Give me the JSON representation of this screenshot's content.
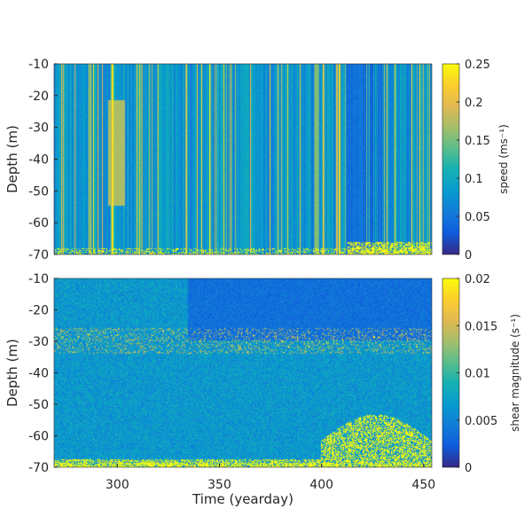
{
  "chart_data": [
    {
      "type": "heatmap",
      "title": "",
      "xlabel": "",
      "ylabel": "Depth (m)",
      "xlim": [
        269,
        454
      ],
      "ylim": [
        -70,
        -10
      ],
      "xticks": [],
      "yticks": [
        -10,
        -20,
        -30,
        -40,
        -50,
        -60,
        -70
      ],
      "ytick_labels": [
        "-10",
        "-20",
        "-30",
        "-40",
        "-50",
        "-60",
        "-70"
      ],
      "colormap": "parula",
      "clim": [
        0,
        0.25
      ],
      "colorbar": {
        "label": "speed (ms⁻¹)",
        "ticks": [
          0,
          0.05,
          0.1,
          0.15,
          0.2,
          0.25
        ],
        "tick_labels": [
          "0",
          "0.05",
          "0.1",
          "0.15",
          "0.2",
          "0.25"
        ]
      }
    },
    {
      "type": "heatmap",
      "title": "",
      "xlabel": "Time (yearday)",
      "ylabel": "Depth (m)",
      "xlim": [
        269,
        454
      ],
      "ylim": [
        -70,
        -10
      ],
      "xticks": [
        300,
        350,
        400,
        450
      ],
      "xtick_labels": [
        "300",
        "350",
        "400",
        "450"
      ],
      "yticks": [
        -10,
        -20,
        -30,
        -40,
        -50,
        -60,
        -70
      ],
      "ytick_labels": [
        "-10",
        "-20",
        "-30",
        "-40",
        "-50",
        "-60",
        "-70"
      ],
      "colormap": "parula",
      "clim": [
        0,
        0.02
      ],
      "colorbar": {
        "label": "shear magnitude (s⁻¹)",
        "ticks": [
          0,
          0.005,
          0.01,
          0.015,
          0.02
        ],
        "tick_labels": [
          "0",
          "0.005",
          "0.01",
          "0.015",
          "0.02"
        ]
      }
    }
  ]
}
